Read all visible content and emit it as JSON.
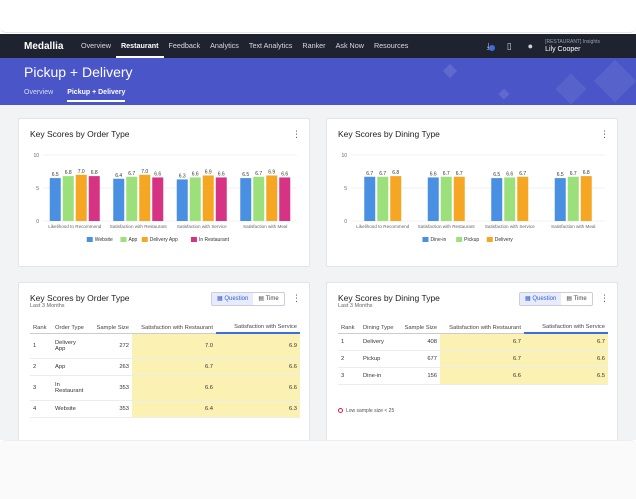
{
  "nav": {
    "brand": "Medallia",
    "items": [
      "Overview",
      "Restaurant",
      "Feedback",
      "Analytics",
      "Text Analytics",
      "Ranker",
      "Ask Now",
      "Resources"
    ],
    "active_index": 1,
    "user_role": "[RESTAURANT] Insights",
    "user_name": "Lily Cooper"
  },
  "hero": {
    "title": "Pickup + Delivery",
    "tabs": [
      "Overview",
      "Pickup + Delivery"
    ],
    "active_index": 1
  },
  "colors": {
    "website": "#4a90e2",
    "app": "#9be07a",
    "delivery_app": "#f5a623",
    "in_restaurant": "#d63384",
    "dine_in": "#4a90e2",
    "pickup": "#9be07a",
    "delivery": "#f5a623",
    "highlight": "#fbf1b3"
  },
  "card1": {
    "title": "Key Scores by Order Type"
  },
  "card2": {
    "title": "Key Scores by Dining Type"
  },
  "card3": {
    "title": "Key Scores by Order Type",
    "subtitle": "Last 3 Months",
    "toggle": [
      "Question",
      "Time"
    ],
    "headers": [
      "Rank",
      "Order Type",
      "Sample Size",
      "Satisfaction with Restaurant",
      "Satisfaction with Service"
    ],
    "rows": [
      [
        "1",
        "Delivery App",
        "272",
        "7.0",
        "6.9"
      ],
      [
        "2",
        "App",
        "263",
        "6.7",
        "6.6"
      ],
      [
        "3",
        "In Restaurant",
        "353",
        "6.6",
        "6.6"
      ],
      [
        "4",
        "Website",
        "353",
        "6.4",
        "6.3"
      ]
    ]
  },
  "card4": {
    "title": "Key Scores by Dining Type",
    "subtitle": "Last 3 Months",
    "toggle": [
      "Question",
      "Time"
    ],
    "headers": [
      "Rank",
      "Dining Type",
      "Sample Size",
      "Satisfaction with Restaurant",
      "Satisfaction with Service"
    ],
    "rows": [
      [
        "1",
        "Delivery",
        "408",
        "6.7",
        "6.7"
      ],
      [
        "2",
        "Pickup",
        "677",
        "6.7",
        "6.6"
      ],
      [
        "3",
        "Dine-in",
        "156",
        "6.6",
        "6.5"
      ]
    ],
    "note": "Low sample size < 25"
  },
  "chart_data": [
    {
      "type": "bar",
      "title": "Key Scores by Order Type",
      "categories": [
        "Likelihood to Recommend",
        "Satisfaction with Restaurant",
        "Satisfaction with Service",
        "Satisfaction with Meal"
      ],
      "ylim": [
        0,
        10
      ],
      "yticks": [
        "0",
        "5",
        "10"
      ],
      "series": [
        {
          "name": "Website",
          "values": [
            6.5,
            6.4,
            6.3,
            6.5
          ]
        },
        {
          "name": "App",
          "values": [
            6.8,
            6.7,
            6.6,
            6.7
          ]
        },
        {
          "name": "Delivery App",
          "values": [
            7.0,
            7.0,
            6.9,
            6.9
          ]
        },
        {
          "name": "In Restaurant",
          "values": [
            6.8,
            6.6,
            6.6,
            6.6
          ]
        }
      ],
      "grid": true,
      "legend": "bottom"
    },
    {
      "type": "bar",
      "title": "Key Scores by Dining Type",
      "categories": [
        "Likelihood to Recommend",
        "Satisfaction with Restaurant",
        "Satisfaction with Service",
        "Satisfaction with Meal"
      ],
      "ylim": [
        0,
        10
      ],
      "yticks": [
        "0",
        "5",
        "10"
      ],
      "series": [
        {
          "name": "Dine-in",
          "values": [
            6.7,
            6.6,
            6.5,
            6.5
          ]
        },
        {
          "name": "Pickup",
          "values": [
            6.7,
            6.7,
            6.6,
            6.7
          ]
        },
        {
          "name": "Delivery",
          "values": [
            6.8,
            6.7,
            6.7,
            6.8
          ]
        }
      ],
      "grid": true,
      "legend": "bottom"
    }
  ]
}
